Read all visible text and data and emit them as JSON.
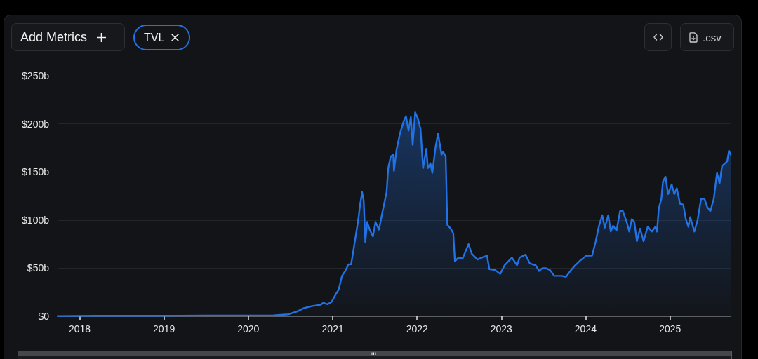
{
  "chart_data": {
    "type": "area",
    "color": "#2172e5",
    "marker": "none",
    "line_style": "solid",
    "grid": "y",
    "annotations": [
      "Add Metrics",
      "TVL",
      ".csv"
    ],
    "xlim": [
      "2017-09-27",
      "2025-09-20"
    ],
    "xticks": [
      "2018",
      "2019",
      "2020",
      "2021",
      "2022",
      "2023",
      "2024",
      "2025"
    ],
    "ylim": [
      0,
      250
    ],
    "yticks": [
      {
        "value": 0,
        "label": "$0"
      },
      {
        "value": 50,
        "label": "$50b"
      },
      {
        "value": 100,
        "label": "$100b"
      },
      {
        "value": 150,
        "label": "$150b"
      },
      {
        "value": 200,
        "label": "$200b"
      },
      {
        "value": 250,
        "label": "$250b"
      }
    ],
    "x": [
      "2017-09-27",
      "2018-03-14",
      "2018-08-07",
      "2019-01-01",
      "2019-07-01",
      "2020-01-01",
      "2020-04-20",
      "2020-06-21",
      "2020-07-31",
      "2020-08-29",
      "2020-10-01",
      "2020-11-10",
      "2020-11-21",
      "2020-12-09",
      "2020-12-27",
      "2021-01-12",
      "2021-01-27",
      "2021-02-10",
      "2021-02-24",
      "2021-03-10",
      "2021-03-21",
      "2021-03-25",
      "2021-04-12",
      "2021-04-20",
      "2021-04-30",
      "2021-05-08",
      "2021-05-15",
      "2021-05-22",
      "2021-05-30",
      "2021-06-10",
      "2021-06-24",
      "2021-07-05",
      "2021-07-20",
      "2021-08-03",
      "2021-08-22",
      "2021-08-29",
      "2021-09-09",
      "2021-09-20",
      "2021-09-23",
      "2021-10-04",
      "2021-10-19",
      "2021-11-03",
      "2021-11-14",
      "2021-11-25",
      "2021-12-05",
      "2021-12-13",
      "2021-12-24",
      "2022-01-05",
      "2022-01-16",
      "2022-01-27",
      "2022-02-10",
      "2022-02-17",
      "2022-02-28",
      "2022-03-08",
      "2022-03-22",
      "2022-04-02",
      "2022-04-17",
      "2022-04-24",
      "2022-05-05",
      "2022-05-12",
      "2022-05-27",
      "2022-06-07",
      "2022-06-14",
      "2022-06-29",
      "2022-07-17",
      "2022-08-12",
      "2022-08-26",
      "2022-09-20",
      "2022-10-08",
      "2022-10-31",
      "2022-11-10",
      "2022-12-05",
      "2022-12-27",
      "2023-01-15",
      "2023-02-16",
      "2023-03-10",
      "2023-03-21",
      "2023-04-16",
      "2023-05-04",
      "2023-05-30",
      "2023-06-13",
      "2023-06-28",
      "2023-07-12",
      "2023-07-31",
      "2023-08-18",
      "2023-09-20",
      "2023-10-08",
      "2023-10-30",
      "2023-11-17",
      "2023-12-09",
      "2024-01-04",
      "2024-01-29",
      "2024-02-13",
      "2024-02-27",
      "2024-03-13",
      "2024-03-24",
      "2024-04-08",
      "2024-04-19",
      "2024-04-29",
      "2024-05-14",
      "2024-05-29",
      "2024-06-09",
      "2024-06-27",
      "2024-07-08",
      "2024-07-19",
      "2024-07-30",
      "2024-08-10",
      "2024-08-24",
      "2024-09-08",
      "2024-09-26",
      "2024-10-14",
      "2024-10-29",
      "2024-11-05",
      "2024-11-13",
      "2024-11-24",
      "2024-12-01",
      "2024-12-12",
      "2024-12-23",
      "2025-01-08",
      "2025-01-19",
      "2025-01-30",
      "2025-02-13",
      "2025-02-27",
      "2025-03-10",
      "2025-03-21",
      "2025-03-29",
      "2025-04-16",
      "2025-04-30",
      "2025-05-15",
      "2025-05-30",
      "2025-06-10",
      "2025-06-24",
      "2025-07-09",
      "2025-07-23",
      "2025-08-03",
      "2025-08-14",
      "2025-09-05",
      "2025-09-13",
      "2025-09-20"
    ],
    "values": [
      0.3,
      0.5,
      0.6,
      0.5,
      0.8,
      0.8,
      0.9,
      2,
      5,
      8.5,
      10.5,
      12,
      14,
      12.5,
      15,
      22,
      28,
      42,
      47,
      54,
      54,
      59,
      86,
      98,
      117,
      129,
      120,
      77,
      98,
      90,
      83,
      98,
      90,
      107,
      129,
      154,
      166,
      168,
      151,
      173,
      190,
      202,
      208,
      193,
      207,
      178,
      212,
      205,
      195,
      154,
      174,
      154,
      159,
      149,
      176,
      190,
      168,
      171,
      166,
      95,
      91,
      86,
      57,
      61,
      60,
      75,
      65,
      59,
      61,
      63,
      49,
      48,
      44,
      53,
      61,
      53,
      61,
      64,
      55,
      53,
      47,
      50,
      50,
      48,
      42,
      42,
      41,
      48,
      53,
      58,
      63,
      63,
      77,
      93,
      105,
      92,
      105,
      88,
      94,
      89,
      109,
      110,
      98,
      88,
      101,
      98,
      78,
      91,
      78,
      93,
      88,
      93,
      88,
      112,
      122,
      140,
      145,
      127,
      137,
      127,
      133,
      117,
      116,
      101,
      93,
      103,
      88,
      100,
      122,
      122,
      114,
      109,
      122,
      149,
      138,
      156,
      161,
      172,
      168
    ]
  }
}
